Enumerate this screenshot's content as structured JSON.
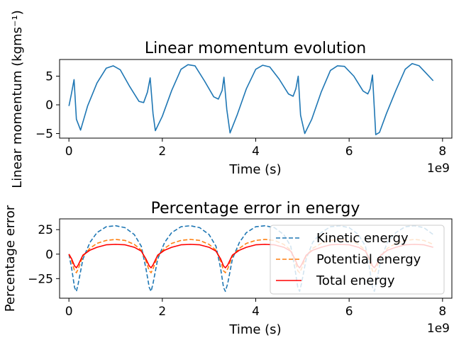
{
  "chart_data": [
    {
      "type": "line",
      "title": "Linear momentum evolution",
      "xlabel": "Time (s)",
      "ylabel": "Linear momentum (kgms⁻¹)",
      "x_offset_label": "1e9",
      "xlim": [
        -200000000.0,
        8200000000.0
      ],
      "ylim": [
        -5.8,
        7.9
      ],
      "xticks": [
        0,
        2000000000.0,
        4000000000.0,
        6000000000.0,
        8000000000.0
      ],
      "xtick_labels": [
        "0",
        "2",
        "4",
        "6",
        "8"
      ],
      "yticks": [
        -5,
        0,
        5
      ],
      "ytick_labels": [
        "−5",
        "0",
        "5"
      ],
      "series": [
        {
          "color": "#1f77b4",
          "style": "solid",
          "x": [
            0,
            50000000.0,
            110000000.0,
            160000000.0,
            250000000.0,
            400000000.0,
            600000000.0,
            800000000.0,
            950000000.0,
            1100000000.0,
            1300000000.0,
            1500000000.0,
            1600000000.0,
            1680000000.0,
            1740000000.0,
            1800000000.0,
            1850000000.0,
            2000000000.0,
            2200000000.0,
            2400000000.0,
            2550000000.0,
            2700000000.0,
            2900000000.0,
            3100000000.0,
            3200000000.0,
            3280000000.0,
            3320000000.0,
            3380000000.0,
            3450000000.0,
            3600000000.0,
            3800000000.0,
            4000000000.0,
            4150000000.0,
            4300000000.0,
            4500000000.0,
            4700000000.0,
            4800000000.0,
            4860000000.0,
            4910000000.0,
            4960000000.0,
            5050000000.0,
            5200000000.0,
            5400000000.0,
            5600000000.0,
            5750000000.0,
            5900000000.0,
            6100000000.0,
            6300000000.0,
            6400000000.0,
            6450000000.0,
            6500000000.0,
            6570000000.0,
            6650000000.0,
            6800000000.0,
            7000000000.0,
            7200000000.0,
            7350000000.0,
            7500000000.0,
            7650000000.0,
            7800000000.0
          ],
          "y": [
            -0.2,
            1.8,
            4.4,
            -2.5,
            -4.4,
            -0.2,
            3.8,
            6.4,
            6.8,
            6.1,
            3.2,
            0.6,
            0.4,
            2.2,
            4.7,
            -1.5,
            -4.5,
            -2.0,
            2.5,
            6.2,
            7.0,
            6.8,
            4.2,
            1.4,
            1.0,
            2.5,
            4.8,
            -0.8,
            -4.9,
            -1.8,
            2.8,
            6.2,
            6.9,
            6.6,
            4.5,
            1.9,
            1.5,
            2.8,
            5.0,
            -1.8,
            -5.0,
            -2.5,
            2.2,
            6.0,
            6.8,
            6.7,
            5.0,
            2.4,
            1.9,
            2.8,
            5.2,
            -5.2,
            -4.8,
            -1.5,
            2.5,
            6.2,
            7.2,
            6.8,
            5.5,
            4.2
          ]
        }
      ]
    },
    {
      "type": "line",
      "title": "Percentage error in energy",
      "xlabel": "Time (s)",
      "ylabel": "Percentage error",
      "x_offset_label": "1e9",
      "xlim": [
        -200000000.0,
        8200000000.0
      ],
      "ylim": [
        -45,
        36
      ],
      "xticks": [
        0,
        2000000000.0,
        4000000000.0,
        6000000000.0,
        8000000000.0
      ],
      "xtick_labels": [
        "0",
        "2",
        "4",
        "6",
        "8"
      ],
      "yticks": [
        -25,
        0,
        25
      ],
      "ytick_labels": [
        "−25",
        "0",
        "25"
      ],
      "legend": {
        "placement": "right"
      },
      "series": [
        {
          "name": "Kinetic energy",
          "color": "#1f77b4",
          "style": "dashed",
          "x": [
            0,
            60000000.0,
            120000000.0,
            160000000.0,
            200000000.0,
            300000000.0,
            450000000.0,
            600000000.0,
            800000000.0,
            1000000000.0,
            1200000000.0,
            1400000000.0,
            1550000000.0,
            1650000000.0,
            1720000000.0,
            1760000000.0,
            1800000000.0,
            1900000000.0,
            2050000000.0,
            2200000000.0,
            2400000000.0,
            2600000000.0,
            2800000000.0,
            3000000000.0,
            3150000000.0,
            3250000000.0,
            3310000000.0,
            3350000000.0,
            3400000000.0,
            3500000000.0,
            3650000000.0,
            3800000000.0,
            4000000000.0,
            4200000000.0,
            4400000000.0,
            4600000000.0,
            4750000000.0,
            4840000000.0,
            4900000000.0,
            4940000000.0,
            4980000000.0,
            5080000000.0,
            5220000000.0,
            5400000000.0,
            5600000000.0,
            5800000000.0,
            6000000000.0,
            6200000000.0,
            6350000000.0,
            6440000000.0,
            6500000000.0,
            6540000000.0,
            6580000000.0,
            6680000000.0,
            6820000000.0,
            7000000000.0,
            7200000000.0,
            7400000000.0,
            7600000000.0,
            7800000000.0
          ],
          "y": [
            0,
            -15,
            -34,
            -38,
            -30,
            -5,
            12,
            22,
            28,
            29,
            27,
            20,
            8,
            -15,
            -34,
            -38,
            -30,
            -5,
            12,
            22,
            28,
            29,
            27,
            20,
            8,
            -15,
            -34,
            -38,
            -30,
            -5,
            12,
            22,
            28,
            29,
            27,
            20,
            8,
            -15,
            -34,
            -38,
            -30,
            -5,
            12,
            22,
            28,
            29,
            27,
            20,
            8,
            -15,
            -34,
            -38,
            -30,
            -5,
            12,
            22,
            28,
            29,
            27,
            20
          ]
        },
        {
          "name": "Potential energy",
          "color": "#ff7f0e",
          "style": "dashed",
          "x": [
            0,
            60000000.0,
            120000000.0,
            160000000.0,
            200000000.0,
            300000000.0,
            450000000.0,
            600000000.0,
            800000000.0,
            1000000000.0,
            1200000000.0,
            1400000000.0,
            1550000000.0,
            1650000000.0,
            1720000000.0,
            1760000000.0,
            1800000000.0,
            1900000000.0,
            2050000000.0,
            2200000000.0,
            2400000000.0,
            2600000000.0,
            2800000000.0,
            3000000000.0,
            3150000000.0,
            3250000000.0,
            3310000000.0,
            3350000000.0,
            3400000000.0,
            3500000000.0,
            3650000000.0,
            3800000000.0,
            4000000000.0,
            4200000000.0,
            4400000000.0,
            4600000000.0,
            4750000000.0,
            4840000000.0,
            4900000000.0,
            4940000000.0,
            4980000000.0,
            5080000000.0,
            5220000000.0,
            5400000000.0,
            5600000000.0,
            5800000000.0,
            6000000000.0,
            6200000000.0,
            6350000000.0,
            6440000000.0,
            6500000000.0,
            6540000000.0,
            6580000000.0,
            6680000000.0,
            6820000000.0,
            7000000000.0,
            7200000000.0,
            7400000000.0,
            7600000000.0,
            7800000000.0
          ],
          "y": [
            0,
            -7,
            -17,
            -19,
            -15,
            -2,
            6,
            11,
            14,
            15,
            14,
            10,
            4,
            -7,
            -17,
            -19,
            -15,
            -2,
            6,
            11,
            14,
            15,
            14,
            10,
            4,
            -7,
            -17,
            -19,
            -15,
            -2,
            6,
            11,
            14,
            15,
            14,
            10,
            4,
            -7,
            -17,
            -19,
            -15,
            -2,
            6,
            11,
            14,
            15,
            14,
            10,
            4,
            -7,
            -17,
            -19,
            -15,
            -2,
            6,
            11,
            14,
            15,
            14,
            10
          ]
        },
        {
          "name": "Total energy",
          "color": "#ff0000",
          "style": "solid",
          "x": [
            0,
            60000000.0,
            120000000.0,
            160000000.0,
            200000000.0,
            300000000.0,
            450000000.0,
            600000000.0,
            800000000.0,
            1000000000.0,
            1200000000.0,
            1400000000.0,
            1550000000.0,
            1650000000.0,
            1720000000.0,
            1760000000.0,
            1800000000.0,
            1900000000.0,
            2050000000.0,
            2200000000.0,
            2400000000.0,
            2600000000.0,
            2800000000.0,
            3000000000.0,
            3150000000.0,
            3250000000.0,
            3310000000.0,
            3350000000.0,
            3400000000.0,
            3500000000.0,
            3650000000.0,
            3800000000.0,
            4000000000.0,
            4200000000.0,
            4400000000.0,
            4600000000.0,
            4750000000.0,
            4840000000.0,
            4900000000.0,
            4940000000.0,
            4980000000.0,
            5080000000.0,
            5220000000.0,
            5400000000.0,
            5600000000.0,
            5800000000.0,
            6000000000.0,
            6200000000.0,
            6350000000.0,
            6440000000.0,
            6500000000.0,
            6540000000.0,
            6580000000.0,
            6680000000.0,
            6820000000.0,
            7000000000.0,
            7200000000.0,
            7400000000.0,
            7600000000.0,
            7800000000.0
          ],
          "y": [
            0,
            -5,
            -12,
            -14,
            -11,
            -1,
            4,
            7,
            9.5,
            10,
            9.5,
            7,
            3,
            -5,
            -12,
            -14,
            -11,
            -1,
            4,
            7,
            9.5,
            10,
            9.5,
            7,
            3,
            -5,
            -12,
            -14,
            -11,
            -1,
            4,
            7,
            9.5,
            10,
            9.5,
            7,
            3,
            -5,
            -12,
            -14,
            -11,
            -1,
            4,
            7,
            9.5,
            10,
            9.5,
            7,
            3,
            -5,
            -12,
            -14,
            -11,
            -1,
            4,
            7,
            9.5,
            10,
            9.5,
            7
          ]
        }
      ]
    }
  ]
}
